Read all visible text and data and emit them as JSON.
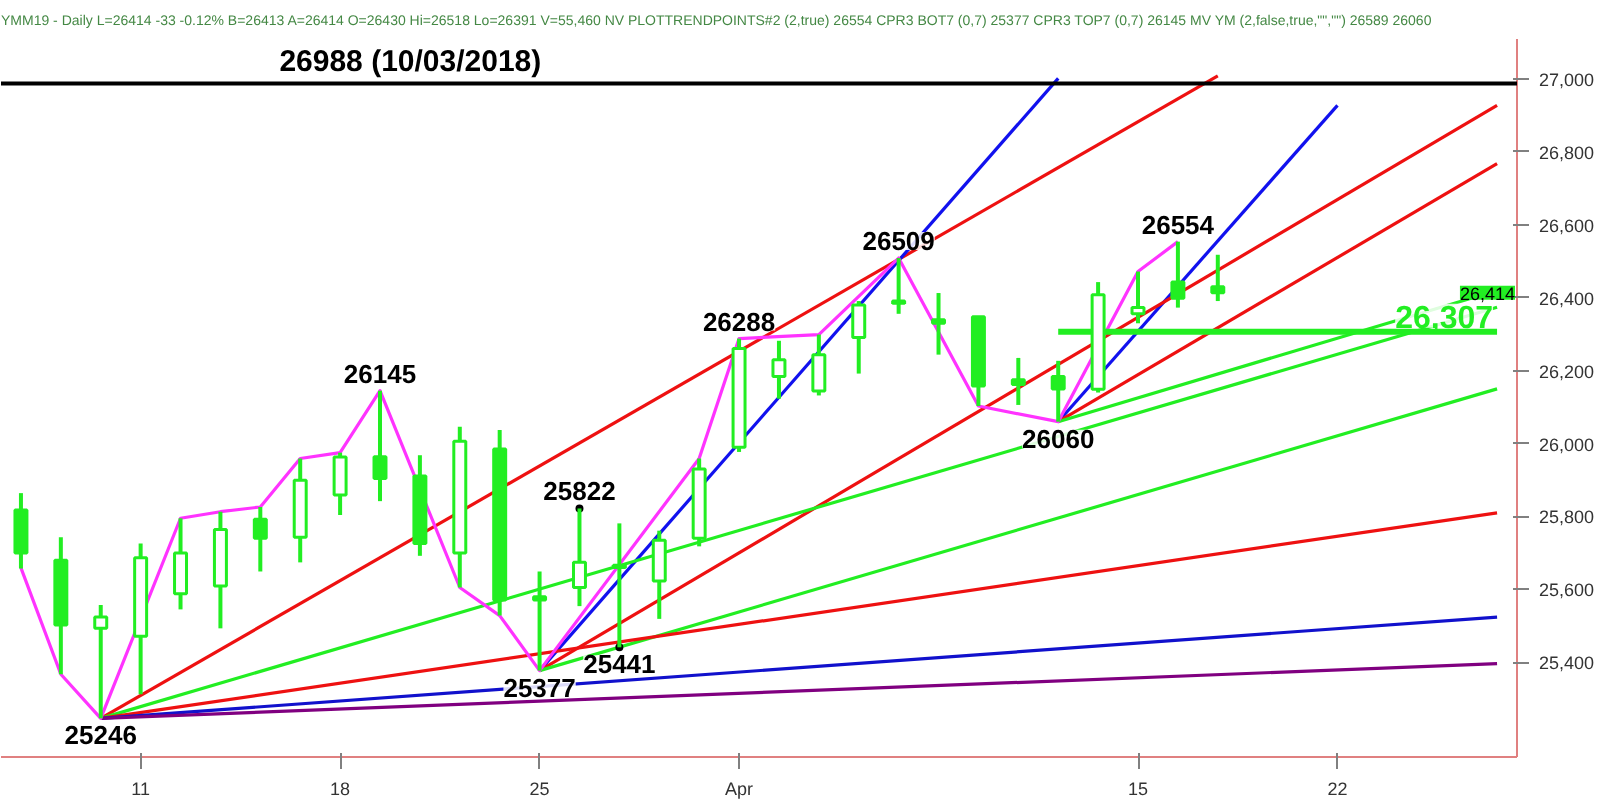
{
  "chart_data": {
    "type": "candlestick",
    "title": "YMM19 - Daily L=26414 -33 -0.12% B=26413 A=26414 O=26430 Hi=26518 Lo=26391 V=55,460 NV PLOTTRENDPOINTS#2 (2,true) 26554 CPR3 BOT7 (0,7) 25377 CPR3 TOP7 (0,7) 26145 MV YM (2,false,true,\"\",\"\") 26589 26060",
    "color": "#22ee22",
    "categories": [
      null,
      null,
      null,
      "11",
      null,
      null,
      null,
      null,
      "18",
      null,
      null,
      null,
      null,
      "25",
      null,
      null,
      null,
      null,
      "Apr",
      null,
      null,
      null,
      null,
      null,
      null,
      null,
      null,
      null,
      "15",
      null,
      null,
      null,
      null,
      "22",
      null,
      null,
      null,
      null
    ],
    "ohlc": [
      [
        25818,
        25864,
        25657,
        25700
      ],
      [
        25680,
        25743,
        25367,
        25502
      ],
      [
        25493,
        25557,
        25246,
        25524
      ],
      [
        25471,
        25726,
        25312,
        25687
      ],
      [
        25588,
        25795,
        25545,
        25700
      ],
      [
        25609,
        25813,
        25493,
        25764
      ],
      [
        25792,
        25826,
        25649,
        25740
      ],
      [
        25743,
        25959,
        25674,
        25899
      ],
      [
        25859,
        25975,
        25804,
        25963
      ],
      [
        25964,
        26145,
        25842,
        25904
      ],
      [
        25911,
        25968,
        25692,
        25726
      ],
      [
        25700,
        26046,
        25605,
        26006
      ],
      [
        25985,
        26037,
        25528,
        25571
      ],
      [
        25580,
        25649,
        25377,
        25571
      ],
      [
        25605,
        25822,
        25554,
        25674
      ],
      [
        25666,
        25781,
        25441,
        25660
      ],
      [
        25623,
        25761,
        25519,
        25735
      ],
      [
        25740,
        25959,
        25718,
        25930
      ],
      [
        25990,
        26288,
        25977,
        26261
      ],
      [
        26184,
        26282,
        26123,
        26230
      ],
      [
        26144,
        26299,
        26132,
        26244
      ],
      [
        26291,
        26391,
        26192,
        26380
      ],
      [
        26391,
        26509,
        26356,
        26385
      ],
      [
        26340,
        26413,
        26244,
        26330
      ],
      [
        26348,
        26348,
        26103,
        26158
      ],
      [
        26175,
        26235,
        26106,
        26162
      ],
      [
        26184,
        26227,
        26060,
        26150
      ],
      [
        26149,
        26443,
        26140,
        26408
      ],
      [
        26356,
        26472,
        26330,
        26373
      ],
      [
        26443,
        26554,
        26373,
        26399
      ],
      [
        26430,
        26518,
        26391,
        26414
      ],
      null,
      null,
      null,
      null,
      null,
      null,
      null
    ],
    "series": [
      {
        "type": "line",
        "color": "#ee1111",
        "values": [
          null,
          null,
          25246,
          null,
          null,
          null,
          null,
          null,
          null,
          null,
          null,
          null,
          null,
          null,
          null,
          null,
          null,
          null,
          null,
          null,
          null,
          null,
          null,
          null,
          null,
          null,
          null,
          null,
          null,
          null,
          27009,
          null,
          null,
          null,
          null,
          null,
          null,
          null
        ]
      },
      {
        "type": "line",
        "color": "#1111ee",
        "values": [
          null,
          null,
          null,
          null,
          null,
          null,
          null,
          null,
          null,
          null,
          null,
          null,
          null,
          25377,
          null,
          null,
          null,
          null,
          null,
          null,
          null,
          null,
          null,
          null,
          null,
          null,
          27002,
          null,
          null,
          null,
          null,
          null,
          null,
          null,
          null,
          null,
          null,
          null
        ]
      },
      {
        "type": "line",
        "color": "#1111ee",
        "values": [
          null,
          null,
          null,
          null,
          null,
          null,
          null,
          null,
          null,
          null,
          null,
          null,
          null,
          null,
          null,
          null,
          null,
          null,
          null,
          null,
          null,
          null,
          null,
          null,
          null,
          null,
          26060,
          null,
          null,
          null,
          null,
          null,
          null,
          26928,
          null,
          null,
          null,
          null
        ]
      },
      {
        "type": "line",
        "color": "#ee1111",
        "values": [
          null,
          null,
          null,
          null,
          null,
          null,
          null,
          null,
          null,
          null,
          null,
          null,
          null,
          25377,
          null,
          null,
          null,
          null,
          null,
          null,
          null,
          null,
          null,
          null,
          null,
          null,
          null,
          null,
          null,
          null,
          null,
          null,
          null,
          null,
          null,
          null,
          null,
          26928
        ]
      },
      {
        "type": "line",
        "color": "#ee1111",
        "values": [
          null,
          null,
          null,
          null,
          null,
          null,
          null,
          null,
          null,
          null,
          null,
          null,
          null,
          null,
          null,
          null,
          null,
          null,
          null,
          null,
          null,
          null,
          null,
          null,
          null,
          null,
          26060,
          null,
          null,
          null,
          null,
          null,
          null,
          null,
          null,
          null,
          null,
          26768
        ]
      },
      {
        "type": "line",
        "color": "#22ee22",
        "values": [
          null,
          null,
          25246,
          null,
          null,
          null,
          null,
          null,
          null,
          null,
          null,
          null,
          null,
          null,
          null,
          null,
          null,
          null,
          null,
          null,
          null,
          null,
          null,
          null,
          null,
          null,
          null,
          null,
          null,
          null,
          null,
          null,
          null,
          null,
          null,
          null,
          null,
          26374
        ]
      },
      {
        "type": "line",
        "color": "#22ee22",
        "values": [
          null,
          null,
          null,
          null,
          null,
          null,
          null,
          null,
          null,
          null,
          null,
          null,
          null,
          null,
          null,
          null,
          null,
          null,
          null,
          null,
          null,
          null,
          null,
          null,
          null,
          null,
          26060,
          null,
          null,
          null,
          null,
          null,
          null,
          null,
          null,
          null,
          null,
          26420
        ]
      },
      {
        "type": "line",
        "color": "#22ee22",
        "values": [
          null,
          null,
          null,
          null,
          null,
          null,
          null,
          null,
          null,
          null,
          null,
          null,
          null,
          25377,
          null,
          null,
          null,
          null,
          null,
          null,
          null,
          null,
          null,
          null,
          null,
          null,
          null,
          null,
          null,
          null,
          null,
          null,
          null,
          null,
          null,
          null,
          null,
          26150
        ]
      },
      {
        "type": "line",
        "color": "#ee1111",
        "values": [
          null,
          null,
          25246,
          null,
          null,
          null,
          null,
          null,
          null,
          null,
          null,
          null,
          null,
          null,
          null,
          null,
          null,
          null,
          null,
          null,
          null,
          null,
          null,
          null,
          null,
          null,
          null,
          null,
          null,
          null,
          null,
          null,
          null,
          null,
          null,
          null,
          null,
          25810
        ]
      },
      {
        "type": "line",
        "color": "#1111cc",
        "values": [
          null,
          null,
          25246,
          null,
          null,
          null,
          null,
          null,
          null,
          null,
          null,
          null,
          null,
          null,
          null,
          null,
          null,
          null,
          null,
          null,
          null,
          null,
          null,
          null,
          null,
          null,
          null,
          null,
          null,
          null,
          null,
          null,
          null,
          null,
          null,
          null,
          null,
          25524
        ]
      },
      {
        "type": "line",
        "color": "#800080",
        "values": [
          null,
          null,
          25246,
          null,
          null,
          null,
          null,
          null,
          null,
          null,
          null,
          null,
          null,
          null,
          null,
          null,
          null,
          null,
          null,
          null,
          null,
          null,
          null,
          null,
          null,
          null,
          null,
          null,
          null,
          null,
          null,
          null,
          null,
          null,
          null,
          null,
          null,
          25396
        ]
      },
      {
        "type": "line",
        "color": "#ff33ff",
        "values": [
          25659,
          25367,
          25246,
          null,
          25795,
          25813,
          25826,
          25959,
          25975,
          26145,
          null,
          25605,
          25528,
          25377,
          null,
          null,
          null,
          25959,
          26288,
          null,
          26299,
          null,
          26509,
          null,
          26103,
          null,
          26060,
          null,
          26472,
          26554,
          null,
          null,
          null,
          null,
          null,
          null,
          null,
          null
        ],
        "value_labels": [
          null,
          null,
          "25246",
          null,
          null,
          null,
          null,
          null,
          null,
          "26145",
          null,
          null,
          null,
          "25377",
          null,
          null,
          null,
          null,
          "26288",
          null,
          null,
          null,
          "26509",
          null,
          null,
          null,
          "26060",
          null,
          null,
          "26554",
          null,
          null,
          null,
          null,
          null,
          null,
          null,
          null
        ]
      },
      {
        "type": "scatter",
        "color": "#000000",
        "marker": "circle",
        "values": [
          null,
          null,
          null,
          null,
          null,
          null,
          null,
          null,
          null,
          null,
          null,
          null,
          null,
          null,
          25822,
          25441,
          null,
          null,
          null,
          null,
          null,
          null,
          null,
          null,
          null,
          null,
          null,
          null,
          null,
          null,
          null,
          null,
          null,
          null,
          null,
          null,
          null,
          null
        ],
        "value_labels": [
          null,
          null,
          null,
          null,
          null,
          null,
          null,
          null,
          null,
          null,
          null,
          null,
          null,
          null,
          "25822",
          "25441",
          null,
          null,
          null,
          null,
          null,
          null,
          null,
          null,
          null,
          null,
          null,
          null,
          null,
          null,
          null,
          null,
          null,
          null,
          null,
          null,
          null,
          null
        ]
      },
      {
        "type": "line",
        "name": "26,307",
        "color": "#22ee22",
        "values": [
          null,
          null,
          null,
          null,
          null,
          null,
          null,
          null,
          null,
          null,
          null,
          null,
          null,
          null,
          null,
          null,
          null,
          null,
          null,
          null,
          null,
          null,
          null,
          null,
          null,
          null,
          26307,
          null,
          null,
          null,
          null,
          null,
          null,
          null,
          null,
          null,
          null,
          26307
        ]
      }
    ],
    "ref_lines": [
      {
        "axis": "y",
        "value": 26988,
        "label": "26988 (10/03/2018)",
        "color": "#000000"
      }
    ],
    "annotations": [
      "26,414"
    ],
    "ylim": [
      25140,
      27110
    ],
    "yticks": [
      {
        "value": 25400,
        "label": "25,400"
      },
      {
        "value": 25600,
        "label": "25,600"
      },
      {
        "value": 25800,
        "label": "25,800"
      },
      {
        "value": 26000,
        "label": "26,000"
      },
      {
        "value": 26200,
        "label": "26,200"
      },
      {
        "value": 26400,
        "label": "26,400"
      },
      {
        "value": 26600,
        "label": "26,600"
      },
      {
        "value": 26800,
        "label": "26,800"
      },
      {
        "value": 27000,
        "label": "27,000"
      }
    ],
    "grid": false
  }
}
